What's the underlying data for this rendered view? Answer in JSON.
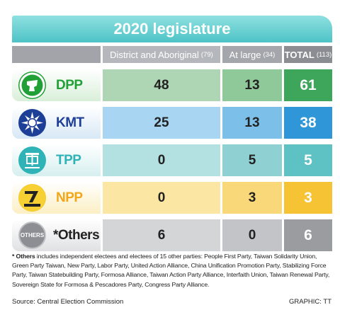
{
  "title": "2020 legislature",
  "header": {
    "district": "District and Aboriginal",
    "district_count": "(79)",
    "at_large": "At large",
    "at_large_count": "(34)",
    "total": "TOTAL",
    "total_count": "(113)"
  },
  "rows": [
    {
      "party": "DPP",
      "district": "48",
      "at_large": "13",
      "total": "61",
      "name_color": "#22a038",
      "logo": "dpp-logo"
    },
    {
      "party": "KMT",
      "district": "25",
      "at_large": "13",
      "total": "38",
      "name_color": "#1d3f97",
      "logo": "kmt-logo"
    },
    {
      "party": "TPP",
      "district": "0",
      "at_large": "5",
      "total": "5",
      "name_color": "#2fb3b7",
      "logo": "tpp-logo"
    },
    {
      "party": "NPP",
      "district": "0",
      "at_large": "3",
      "total": "3",
      "name_color": "#f2a71b",
      "logo": "npp-logo"
    },
    {
      "party": "*Others",
      "district": "6",
      "at_large": "0",
      "total": "6",
      "name_color": "#222222",
      "logo": "others-logo",
      "logo_text": "OTHERS"
    }
  ],
  "footnote": {
    "lead": "* Others",
    "text": " includes independent electees and electees of 15 other parties: People First Party, Taiwan Solidarity Union, Green Party Taiwan, New Party, Labor Party, United Action Alliance, China Unification Promotion Party, Stabilizing Force Party, Taiwan Statebuilding Party, Formosa Alliance, Taiwan Action Party Alliance, Interfaith Union, Taiwan Renewal Party, Sovereign State for Formosa & Pescadores Party, Congress Party Alliance."
  },
  "source": "Source: Central Election Commission",
  "credit": "GRAPHIC: TT"
}
